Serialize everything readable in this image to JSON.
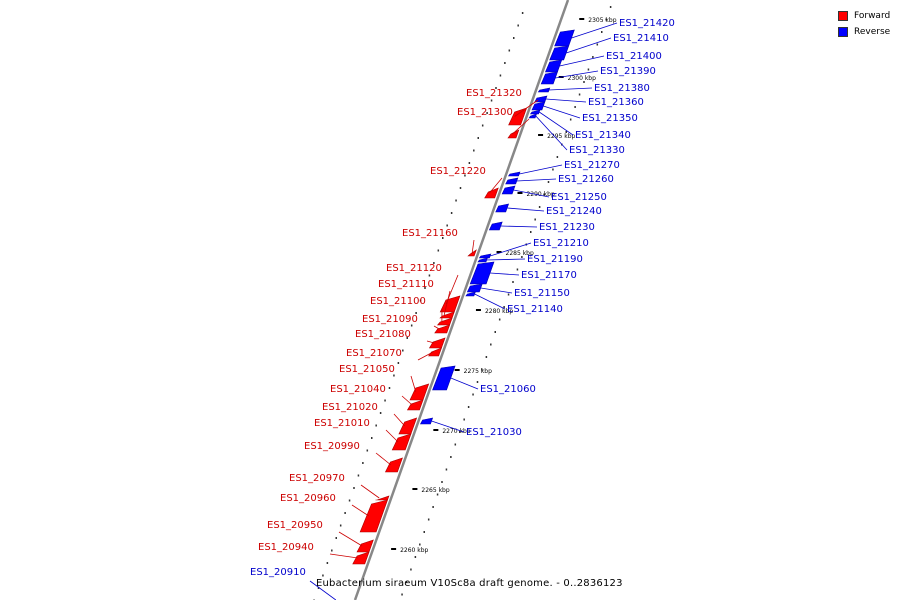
{
  "legend": {
    "forward_label": "Forward",
    "reverse_label": "Reverse",
    "forward_color": "#ff0000",
    "reverse_color": "#0000ff"
  },
  "caption": "Eubacterium siraeum V10Sc8a draft genome. - 0..2836123",
  "colors": {
    "axis": "#888888",
    "forward_label_text": "#cc0000",
    "reverse_label_text": "#0000cc",
    "tick": "#000000"
  },
  "scale_labels": [
    "2305 kbp",
    "2300 kbp",
    "2295 kbp",
    "2290 kbp",
    "2285 kbp",
    "2280 kbp",
    "2275 kbp",
    "2270 kbp",
    "2265 kbp",
    "2260 kbp"
  ],
  "forward_genes": [
    "ES1_21320",
    "ES1_21300",
    "ES1_21220",
    "ES1_21160",
    "ES1_21120",
    "ES1_21110",
    "ES1_21100",
    "ES1_21090",
    "ES1_21080",
    "ES1_21070",
    "ES1_21050",
    "ES1_21040",
    "ES1_21020",
    "ES1_21010",
    "ES1_20990",
    "ES1_20970",
    "ES1_20960",
    "ES1_20950",
    "ES1_20940"
  ],
  "reverse_genes": [
    "ES1_21420",
    "ES1_21410",
    "ES1_21400",
    "ES1_21390",
    "ES1_21380",
    "ES1_21360",
    "ES1_21350",
    "ES1_21340",
    "ES1_21330",
    "ES1_21270",
    "ES1_21260",
    "ES1_21250",
    "ES1_21240",
    "ES1_21230",
    "ES1_21210",
    "ES1_21190",
    "ES1_21170",
    "ES1_21150",
    "ES1_21140",
    "ES1_21060",
    "ES1_21030",
    "ES1_20910"
  ]
}
